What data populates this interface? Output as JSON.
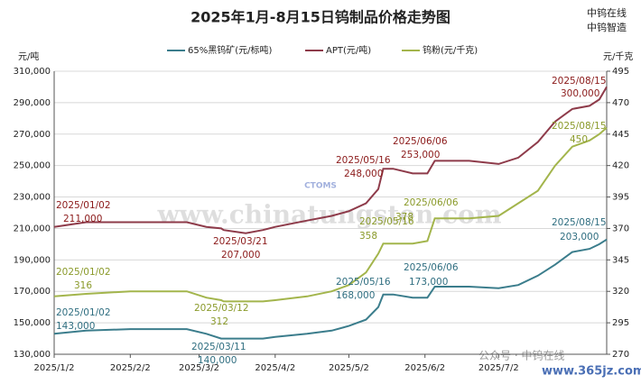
{
  "chart_data": {
    "type": "line",
    "title": "2025年1月-8月15日钨制品价格走势图",
    "brand": [
      "中钨在线",
      "中钨智造"
    ],
    "ylabel": "元/吨",
    "y2label": "元/千克",
    "watermark": "www.chinatungsten.com",
    "logo": "CTOMS",
    "footer": [
      "公众号 · 中钨在线",
      "www.365jz.com"
    ],
    "x": [
      "2025-01-02",
      "2025-01-15",
      "2025-02-02",
      "2025-02-25",
      "2025-03-05",
      "2025-03-11",
      "2025-03-12",
      "2025-03-21",
      "2025-03-28",
      "2025-04-02",
      "2025-04-15",
      "2025-04-25",
      "2025-05-02",
      "2025-05-09",
      "2025-05-14",
      "2025-05-16",
      "2025-05-20",
      "2025-05-28",
      "2025-06-03",
      "2025-06-06",
      "2025-06-20",
      "2025-07-02",
      "2025-07-10",
      "2025-07-18",
      "2025-07-25",
      "2025-08-01",
      "2025-08-08",
      "2025-08-12",
      "2025-08-15"
    ],
    "xlim": [
      "2025-01-02",
      "2025-08-15"
    ],
    "xticks": [
      {
        "value": "2025-01-02",
        "label": "2025/1/2"
      },
      {
        "value": "2025-02-02",
        "label": "2025/2/2"
      },
      {
        "value": "2025-03-02",
        "label": "2025/3/2"
      },
      {
        "value": "2025-04-02",
        "label": "2025/4/2"
      },
      {
        "value": "2025-05-02",
        "label": "2025/5/2"
      },
      {
        "value": "2025-06-02",
        "label": "2025/6/2"
      },
      {
        "value": "2025-07-02",
        "label": "2025/7/2"
      }
    ],
    "ylim": [
      130000,
      310000
    ],
    "yticks": [
      {
        "value": 130000,
        "label": "130,000"
      },
      {
        "value": 150000,
        "label": "150,000"
      },
      {
        "value": 170000,
        "label": "170,000"
      },
      {
        "value": 190000,
        "label": "190,000"
      },
      {
        "value": 210000,
        "label": "210,000"
      },
      {
        "value": 230000,
        "label": "230,000"
      },
      {
        "value": 250000,
        "label": "250,000"
      },
      {
        "value": 270000,
        "label": "270,000"
      },
      {
        "value": 290000,
        "label": "290,000"
      },
      {
        "value": 310000,
        "label": "310,000"
      }
    ],
    "y2lim": [
      270,
      495
    ],
    "y2ticks": [
      270,
      295,
      320,
      345,
      370,
      395,
      420,
      445,
      470,
      495
    ],
    "grid": true,
    "series": [
      {
        "name": "65%黑钨矿(元/标吨)",
        "color": "#3b7d8c",
        "values": [
          143000,
          145000,
          146000,
          146000,
          143000,
          140000,
          140000,
          140000,
          140000,
          141000,
          143000,
          145000,
          148000,
          152000,
          160000,
          168000,
          168000,
          166000,
          166000,
          173000,
          173000,
          172000,
          174000,
          180000,
          187000,
          195000,
          197000,
          200000,
          203000
        ]
      },
      {
        "name": "APT(元/吨)",
        "color": "#8e3b4a",
        "values": [
          211000,
          214000,
          214000,
          214000,
          211000,
          210000,
          209000,
          207000,
          209000,
          211000,
          215000,
          218000,
          221000,
          226000,
          235000,
          248000,
          248000,
          245000,
          245000,
          253000,
          253000,
          251000,
          255000,
          265000,
          278000,
          286000,
          288000,
          292000,
          300000
        ]
      },
      {
        "name": "钨粉(元/千克)",
        "color": "#a3b54c",
        "axis": "y2",
        "values": [
          316,
          318,
          320,
          320,
          315,
          313,
          312,
          312,
          312,
          313,
          316,
          320,
          325,
          335,
          350,
          358,
          358,
          358,
          360,
          378,
          378,
          380,
          390,
          400,
          420,
          435,
          440,
          445,
          450
        ]
      }
    ],
    "annotations": [
      {
        "date": "2025/01/02",
        "value": "211,000",
        "color": "#8b1a1a"
      },
      {
        "date": "2025/03/21",
        "value": "207,000",
        "color": "#8b1a1a"
      },
      {
        "date": "2025/05/16",
        "value": "248,000",
        "color": "#8b1a1a"
      },
      {
        "date": "2025/06/06",
        "value": "253,000",
        "color": "#8b1a1a"
      },
      {
        "date": "2025/08/15",
        "value": "300,000",
        "color": "#8b1a1a"
      },
      {
        "date": "2025/01/02",
        "value": "316",
        "color": "#8a9a2a"
      },
      {
        "date": "2025/03/12",
        "value": "312",
        "color": "#8a9a2a"
      },
      {
        "date": "2025/05/16",
        "value": "358",
        "color": "#8a9a2a"
      },
      {
        "date": "2025/06/06",
        "value": "378",
        "color": "#8a9a2a"
      },
      {
        "date": "2025/08/15",
        "value": "450",
        "color": "#8a9a2a"
      },
      {
        "date": "2025/01/02",
        "value": "143,000",
        "color": "#2f6e80"
      },
      {
        "date": "2025/03/11",
        "value": "140,000",
        "color": "#2f6e80"
      },
      {
        "date": "2025/05/16",
        "value": "168,000",
        "color": "#2f6e80"
      },
      {
        "date": "2025/06/06",
        "value": "173,000",
        "color": "#2f6e80"
      },
      {
        "date": "2025/08/15",
        "value": "203,000",
        "color": "#2f6e80"
      }
    ]
  }
}
